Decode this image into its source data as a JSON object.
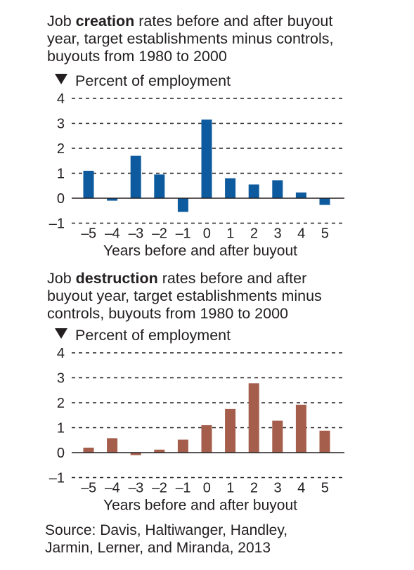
{
  "source_lines": [
    "Source: Davis, Haltiwanger, Handley,",
    "Jarmin, Lerner, and Miranda, 2013"
  ],
  "chart_data": [
    {
      "type": "bar",
      "title_pre": "Job ",
      "title_bold": "creation",
      "title_post": " rates before and after buyout",
      "title_lines": [
        "year, target establishments minus controls,",
        "buyouts from 1980 to 2000"
      ],
      "ylabel": "Percent of employment",
      "xlabel": "Years before and after buyout",
      "color": "#0d5a9e",
      "ylim": [
        -1,
        4
      ],
      "yticks": [
        "4",
        "3",
        "2",
        "1",
        "0",
        "–1"
      ],
      "categories": [
        "–5",
        "–4",
        "–3",
        "–2",
        "–1",
        "0",
        "1",
        "2",
        "3",
        "4",
        "5"
      ],
      "values": [
        1.1,
        -0.1,
        1.7,
        0.95,
        -0.55,
        3.15,
        0.8,
        0.55,
        0.72,
        0.23,
        -0.27
      ]
    },
    {
      "type": "bar",
      "title_pre": "Job ",
      "title_bold": "destruction",
      "title_post": " rates before and after",
      "title_lines": [
        "buyout year, target establishments minus",
        "controls, buyouts from 1980 to 2000"
      ],
      "ylabel": "Percent of employment",
      "xlabel": "Years before and after buyout",
      "color": "#a65e4c",
      "ylim": [
        -1,
        4
      ],
      "yticks": [
        "4",
        "3",
        "2",
        "1",
        "0",
        "–1"
      ],
      "categories": [
        "–5",
        "–4",
        "–3",
        "–2",
        "–1",
        "0",
        "1",
        "2",
        "3",
        "4",
        "5"
      ],
      "values": [
        0.2,
        0.58,
        -0.1,
        0.12,
        0.52,
        1.1,
        1.75,
        2.78,
        1.28,
        1.92,
        0.88
      ]
    }
  ]
}
